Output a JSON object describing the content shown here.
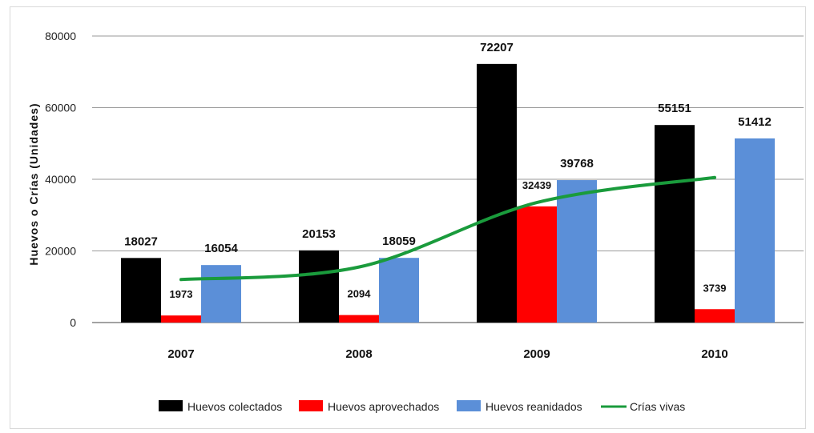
{
  "chart_data": {
    "type": "bar",
    "title": "",
    "xlabel": "",
    "ylabel": "Huevos o Crías (Unidades)",
    "ylim": [
      0,
      80000
    ],
    "yticks": [
      "0",
      "20000",
      "40000",
      "60000",
      "80000"
    ],
    "categories": [
      "2007",
      "2008",
      "2009",
      "2010"
    ],
    "grid": true,
    "legend_position": "bottom",
    "series": [
      {
        "name": "Huevos colectados",
        "kind": "bar",
        "color": "#000000",
        "values": [
          18027,
          20153,
          72207,
          55151
        ],
        "labels": [
          "18027",
          "20153",
          "72207",
          "55151"
        ]
      },
      {
        "name": "Huevos aprovechados",
        "kind": "bar",
        "color": "#ff0000",
        "values": [
          1973,
          2094,
          32439,
          3739
        ],
        "labels": [
          "1973",
          "2094",
          "32439",
          "3739"
        ]
      },
      {
        "name": "Huevos reanidados",
        "kind": "bar",
        "color": "#5b8fd8",
        "values": [
          16054,
          18059,
          39768,
          51412
        ],
        "labels": [
          "16054",
          "18059",
          "39768",
          "51412"
        ]
      },
      {
        "name": "Crías vivas",
        "kind": "line",
        "color": "#1a9b3c",
        "values": [
          12000,
          15500,
          33500,
          40500
        ]
      }
    ]
  }
}
